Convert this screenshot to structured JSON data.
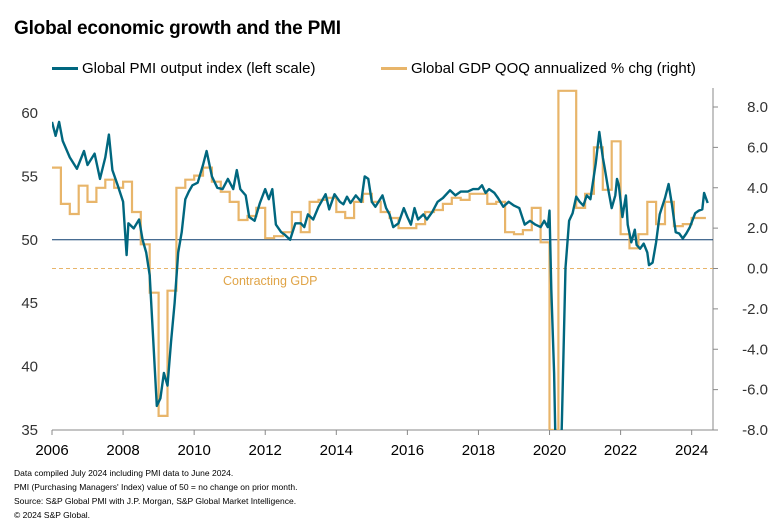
{
  "title": "Global economic growth and the PMI",
  "legend": {
    "pmi_label": "Global PMI output index (left scale)",
    "gdp_label": "Global GDP QOQ annualized % chg (right)"
  },
  "annotation": "Contracting GDP",
  "footnotes": [
    "Data compiled July 2024 including PMI data to June 2024.",
    "PMI (Purchasing Managers' Index) value of 50 = no change on prior month.",
    "Source: S&P Global PMI with J.P. Morgan, S&P Global Market Intelligence.",
    "© 2024 S&P Global."
  ],
  "colors": {
    "pmi": "#00677f",
    "gdp": "#e8b56a",
    "ref_line": "#0b3c6e",
    "zero_gdp": "#e8b56a"
  },
  "chart_data": {
    "type": "line",
    "title": "Global economic growth and the PMI",
    "x_ticks": [
      "2006",
      "2008",
      "2010",
      "2012",
      "2014",
      "2016",
      "2018",
      "2020",
      "2022",
      "2024"
    ],
    "y_left": {
      "range": [
        35,
        61
      ],
      "ticks": [
        "60",
        "55",
        "50",
        "45",
        "40",
        "35"
      ]
    },
    "y_right": {
      "range": [
        -8,
        8.8
      ],
      "ticks": [
        "8.0",
        "6.0",
        "4.0",
        "2.0",
        "0.0",
        "-2.0",
        "-4.0",
        "-6.0",
        "-8.0"
      ]
    },
    "reference_lines": [
      {
        "axis": "left",
        "value": 50
      },
      {
        "axis": "right",
        "value": 0,
        "label": "Contracting GDP"
      }
    ],
    "series": [
      {
        "name": "Global PMI output index (left scale)",
        "axis": "left",
        "points": [
          [
            2006.0,
            59.3
          ],
          [
            2006.1,
            58.2
          ],
          [
            2006.2,
            59.3
          ],
          [
            2006.3,
            57.8
          ],
          [
            2006.5,
            56.5
          ],
          [
            2006.7,
            55.6
          ],
          [
            2006.9,
            57.0
          ],
          [
            2007.0,
            55.9
          ],
          [
            2007.2,
            56.8
          ],
          [
            2007.35,
            54.8
          ],
          [
            2007.5,
            56.5
          ],
          [
            2007.6,
            58.3
          ],
          [
            2007.7,
            55.5
          ],
          [
            2007.85,
            54.3
          ],
          [
            2008.0,
            53.0
          ],
          [
            2008.05,
            50.8
          ],
          [
            2008.1,
            48.8
          ],
          [
            2008.15,
            51.3
          ],
          [
            2008.3,
            50.9
          ],
          [
            2008.45,
            51.6
          ],
          [
            2008.55,
            50.0
          ],
          [
            2008.65,
            49.0
          ],
          [
            2008.75,
            47.2
          ],
          [
            2008.85,
            42.0
          ],
          [
            2008.95,
            36.9
          ],
          [
            2009.05,
            37.5
          ],
          [
            2009.15,
            39.5
          ],
          [
            2009.25,
            38.5
          ],
          [
            2009.35,
            42.0
          ],
          [
            2009.45,
            45.0
          ],
          [
            2009.55,
            49.0
          ],
          [
            2009.65,
            50.6
          ],
          [
            2009.75,
            53.2
          ],
          [
            2009.85,
            53.8
          ],
          [
            2009.95,
            54.3
          ],
          [
            2010.1,
            54.5
          ],
          [
            2010.25,
            55.9
          ],
          [
            2010.35,
            57.0
          ],
          [
            2010.5,
            55.0
          ],
          [
            2010.65,
            54.1
          ],
          [
            2010.8,
            54.0
          ],
          [
            2010.95,
            54.8
          ],
          [
            2011.1,
            54.0
          ],
          [
            2011.2,
            55.5
          ],
          [
            2011.3,
            54.0
          ],
          [
            2011.45,
            53.5
          ],
          [
            2011.55,
            51.8
          ],
          [
            2011.7,
            51.5
          ],
          [
            2011.85,
            52.9
          ],
          [
            2012.0,
            54.0
          ],
          [
            2012.1,
            53.2
          ],
          [
            2012.2,
            54.0
          ],
          [
            2012.3,
            51.2
          ],
          [
            2012.45,
            50.6
          ],
          [
            2012.55,
            50.4
          ],
          [
            2012.7,
            50.0
          ],
          [
            2012.85,
            51.3
          ],
          [
            2013.0,
            51.3
          ],
          [
            2013.1,
            51.0
          ],
          [
            2013.2,
            52.0
          ],
          [
            2013.35,
            51.6
          ],
          [
            2013.5,
            52.6
          ],
          [
            2013.7,
            53.6
          ],
          [
            2013.8,
            52.4
          ],
          [
            2013.95,
            53.6
          ],
          [
            2014.1,
            53.0
          ],
          [
            2014.2,
            52.8
          ],
          [
            2014.3,
            53.4
          ],
          [
            2014.4,
            52.9
          ],
          [
            2014.55,
            53.5
          ],
          [
            2014.7,
            53.0
          ],
          [
            2014.8,
            55.0
          ],
          [
            2014.9,
            54.8
          ],
          [
            2015.0,
            53.0
          ],
          [
            2015.1,
            52.6
          ],
          [
            2015.3,
            53.5
          ],
          [
            2015.4,
            52.5
          ],
          [
            2015.5,
            52.0
          ],
          [
            2015.6,
            51.0
          ],
          [
            2015.75,
            51.3
          ],
          [
            2015.9,
            52.5
          ],
          [
            2016.0,
            51.8
          ],
          [
            2016.1,
            51.2
          ],
          [
            2016.2,
            52.5
          ],
          [
            2016.3,
            51.6
          ],
          [
            2016.45,
            52.0
          ],
          [
            2016.55,
            51.6
          ],
          [
            2016.7,
            52.2
          ],
          [
            2016.85,
            53.0
          ],
          [
            2017.0,
            53.3
          ],
          [
            2017.2,
            53.9
          ],
          [
            2017.35,
            53.5
          ],
          [
            2017.5,
            53.8
          ],
          [
            2017.7,
            53.8
          ],
          [
            2017.85,
            54.0
          ],
          [
            2018.0,
            54.0
          ],
          [
            2018.1,
            54.3
          ],
          [
            2018.2,
            53.7
          ],
          [
            2018.3,
            54.0
          ],
          [
            2018.45,
            53.7
          ],
          [
            2018.55,
            53.3
          ],
          [
            2018.7,
            52.6
          ],
          [
            2018.85,
            53.0
          ],
          [
            2019.0,
            52.7
          ],
          [
            2019.15,
            52.5
          ],
          [
            2019.3,
            51.2
          ],
          [
            2019.45,
            51.5
          ],
          [
            2019.6,
            51.2
          ],
          [
            2019.75,
            51.0
          ],
          [
            2019.85,
            51.5
          ],
          [
            2019.95,
            51.0
          ],
          [
            2020.0,
            52.3
          ],
          [
            2020.05,
            46.1
          ],
          [
            2020.13,
            39.5
          ],
          [
            2020.22,
            26.5
          ],
          [
            2020.27,
            27.0
          ],
          [
            2020.35,
            36.0
          ],
          [
            2020.45,
            47.8
          ],
          [
            2020.55,
            51.5
          ],
          [
            2020.65,
            52.1
          ],
          [
            2020.75,
            53.4
          ],
          [
            2020.85,
            53.0
          ],
          [
            2020.95,
            52.7
          ],
          [
            2021.05,
            53.5
          ],
          [
            2021.15,
            53.2
          ],
          [
            2021.3,
            56.0
          ],
          [
            2021.4,
            58.5
          ],
          [
            2021.5,
            56.5
          ],
          [
            2021.55,
            55.7
          ],
          [
            2021.65,
            54.0
          ],
          [
            2021.75,
            52.5
          ],
          [
            2021.85,
            53.5
          ],
          [
            2021.9,
            54.8
          ],
          [
            2021.95,
            54.3
          ],
          [
            2022.05,
            51.8
          ],
          [
            2022.15,
            53.5
          ],
          [
            2022.2,
            51.2
          ],
          [
            2022.3,
            49.8
          ],
          [
            2022.4,
            50.8
          ],
          [
            2022.45,
            49.6
          ],
          [
            2022.55,
            49.3
          ],
          [
            2022.65,
            49.7
          ],
          [
            2022.75,
            49.0
          ],
          [
            2022.8,
            48.0
          ],
          [
            2022.9,
            48.2
          ],
          [
            2023.0,
            49.8
          ],
          [
            2023.1,
            52.0
          ],
          [
            2023.25,
            53.3
          ],
          [
            2023.35,
            54.4
          ],
          [
            2023.45,
            52.7
          ],
          [
            2023.55,
            50.6
          ],
          [
            2023.65,
            50.5
          ],
          [
            2023.75,
            50.1
          ],
          [
            2023.85,
            50.5
          ],
          [
            2023.95,
            51.0
          ],
          [
            2024.1,
            52.1
          ],
          [
            2024.2,
            52.3
          ],
          [
            2024.3,
            52.4
          ],
          [
            2024.35,
            53.7
          ],
          [
            2024.4,
            53.3
          ],
          [
            2024.45,
            52.9
          ]
        ]
      },
      {
        "name": "Global GDP QOQ annualized % chg (right)",
        "axis": "right",
        "steps": [
          [
            2006.0,
            5.0
          ],
          [
            2006.25,
            3.2
          ],
          [
            2006.5,
            2.7
          ],
          [
            2006.75,
            4.1
          ],
          [
            2007.0,
            3.3
          ],
          [
            2007.25,
            4.0
          ],
          [
            2007.5,
            4.4
          ],
          [
            2007.75,
            4.0
          ],
          [
            2008.0,
            4.3
          ],
          [
            2008.25,
            2.8
          ],
          [
            2008.5,
            1.2
          ],
          [
            2008.75,
            -1.2
          ],
          [
            2009.0,
            -7.3
          ],
          [
            2009.25,
            -1.1
          ],
          [
            2009.5,
            4.0
          ],
          [
            2009.75,
            4.4
          ],
          [
            2010.0,
            4.6
          ],
          [
            2010.25,
            5.0
          ],
          [
            2010.5,
            4.3
          ],
          [
            2010.75,
            3.8
          ],
          [
            2011.0,
            3.3
          ],
          [
            2011.25,
            2.4
          ],
          [
            2011.5,
            2.6
          ],
          [
            2011.75,
            3.0
          ],
          [
            2012.0,
            1.5
          ],
          [
            2012.25,
            1.6
          ],
          [
            2012.5,
            1.8
          ],
          [
            2012.75,
            2.8
          ],
          [
            2013.0,
            1.8
          ],
          [
            2013.25,
            3.3
          ],
          [
            2013.5,
            3.4
          ],
          [
            2013.75,
            3.5
          ],
          [
            2014.0,
            2.8
          ],
          [
            2014.25,
            2.5
          ],
          [
            2014.5,
            3.3
          ],
          [
            2014.75,
            3.7
          ],
          [
            2015.0,
            3.3
          ],
          [
            2015.25,
            2.8
          ],
          [
            2015.5,
            2.5
          ],
          [
            2015.75,
            2.0
          ],
          [
            2016.0,
            2.0
          ],
          [
            2016.25,
            2.2
          ],
          [
            2016.5,
            2.8
          ],
          [
            2016.75,
            2.9
          ],
          [
            2017.0,
            3.2
          ],
          [
            2017.25,
            3.5
          ],
          [
            2017.5,
            3.4
          ],
          [
            2017.75,
            3.7
          ],
          [
            2018.0,
            3.7
          ],
          [
            2018.25,
            3.2
          ],
          [
            2018.5,
            3.3
          ],
          [
            2018.75,
            1.8
          ],
          [
            2019.0,
            1.7
          ],
          [
            2019.25,
            1.9
          ],
          [
            2019.5,
            3.0
          ],
          [
            2019.75,
            1.3
          ],
          [
            2020.0,
            -8.0
          ],
          [
            2020.25,
            8.8
          ],
          [
            2020.5,
            8.8
          ],
          [
            2020.75,
            3.0
          ],
          [
            2021.0,
            3.7
          ],
          [
            2021.25,
            6.0
          ],
          [
            2021.5,
            3.9
          ],
          [
            2021.75,
            6.3
          ],
          [
            2022.0,
            1.7
          ],
          [
            2022.25,
            1.0
          ],
          [
            2022.5,
            1.7
          ],
          [
            2022.75,
            3.3
          ],
          [
            2023.0,
            2.2
          ],
          [
            2023.25,
            3.3
          ],
          [
            2023.5,
            2.1
          ],
          [
            2023.75,
            2.2
          ],
          [
            2024.0,
            2.5
          ],
          [
            2024.4,
            2.5
          ]
        ]
      }
    ]
  }
}
